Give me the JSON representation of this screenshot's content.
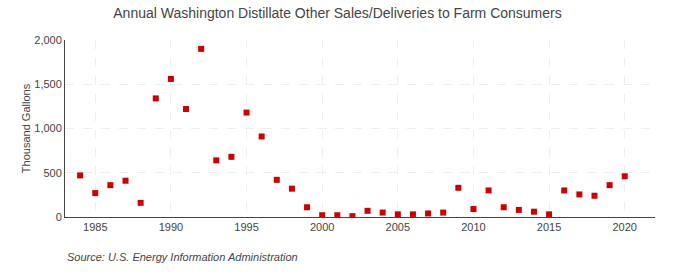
{
  "chart_data": {
    "type": "scatter",
    "title": "Annual Washington Distillate Other Sales/Deliveries to Farm Consumers",
    "y_label": "Thousand Gallons",
    "annotations": [
      "Source: U.S. Energy Information Administration"
    ],
    "x": [
      1984,
      1985,
      1986,
      1987,
      1988,
      1989,
      1990,
      1991,
      1992,
      1993,
      1994,
      1995,
      1996,
      1997,
      1998,
      1999,
      2000,
      2001,
      2002,
      2003,
      2004,
      2005,
      2006,
      2007,
      2008,
      2009,
      2010,
      2011,
      2012,
      2013,
      2014,
      2015,
      2016,
      2017,
      2018,
      2019,
      2020
    ],
    "values": [
      470,
      270,
      360,
      410,
      160,
      1340,
      1560,
      1220,
      1900,
      640,
      680,
      1180,
      910,
      420,
      320,
      110,
      20,
      20,
      10,
      70,
      50,
      30,
      30,
      40,
      50,
      330,
      90,
      300,
      110,
      80,
      60,
      30,
      300,
      255,
      240,
      360,
      460
    ],
    "color": "#cc0000",
    "marker": "square",
    "xlim": [
      1983,
      2022
    ],
    "xticks": [
      1985,
      1990,
      1995,
      2000,
      2005,
      2010,
      2015,
      2020
    ],
    "ylim": [
      0,
      2000
    ],
    "yticks": [
      0,
      500,
      {
        "value": 1000,
        "label": "1,000"
      },
      {
        "value": 1500,
        "label": "1,500"
      },
      {
        "value": 2000,
        "label": "2,000"
      }
    ],
    "grid": true
  }
}
